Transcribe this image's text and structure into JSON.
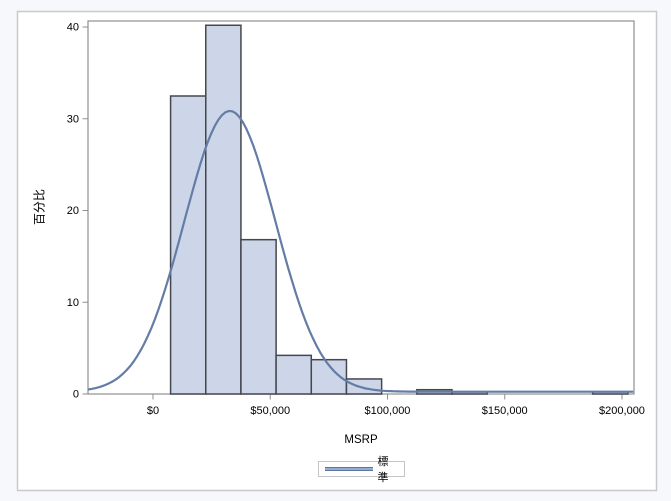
{
  "chart_data": {
    "type": "histogram",
    "title": "",
    "xlabel": "MSRP",
    "ylabel": "百分比",
    "grid": false,
    "xlim_dollars": [
      -27700,
      205100
    ],
    "ylim_percent": [
      0,
      40.7
    ],
    "bin_width_dollars": 15000,
    "x_ticks": [
      {
        "value": 0,
        "label": "$0"
      },
      {
        "value": 50000,
        "label": "$50,000"
      },
      {
        "value": 100000,
        "label": "$100,000"
      },
      {
        "value": 150000,
        "label": "$150,000"
      },
      {
        "value": 200000,
        "label": "$200,000"
      }
    ],
    "y_ticks": [
      {
        "value": 0,
        "label": "0"
      },
      {
        "value": 10,
        "label": "10"
      },
      {
        "value": 20,
        "label": "20"
      },
      {
        "value": 30,
        "label": "30"
      },
      {
        "value": 40,
        "label": "40"
      }
    ],
    "bars": [
      {
        "bin_start": 7500,
        "bin_end": 22500,
        "midpoint": 15000,
        "percent": 32.48
      },
      {
        "bin_start": 22500,
        "bin_end": 37500,
        "midpoint": 30000,
        "percent": 40.19
      },
      {
        "bin_start": 37500,
        "bin_end": 52500,
        "midpoint": 45000,
        "percent": 16.82
      },
      {
        "bin_start": 52500,
        "bin_end": 67500,
        "midpoint": 60000,
        "percent": 4.21
      },
      {
        "bin_start": 67500,
        "bin_end": 82500,
        "midpoint": 75000,
        "percent": 3.74
      },
      {
        "bin_start": 82500,
        "bin_end": 97500,
        "midpoint": 90000,
        "percent": 1.64
      },
      {
        "bin_start": 112500,
        "bin_end": 127500,
        "midpoint": 120000,
        "percent": 0.47
      },
      {
        "bin_start": 127500,
        "bin_end": 142500,
        "midpoint": 135000,
        "percent": 0.23
      },
      {
        "bin_start": 187500,
        "bin_end": 202500,
        "midpoint": 195000,
        "percent": 0.23
      }
    ],
    "curve": {
      "type": "normal",
      "label": "標準",
      "mean_dollars": 32775,
      "std_dollars": 19432,
      "peak_percent": 30.6,
      "visible_tail_percent": 0.25
    },
    "legend": {
      "label": "標準",
      "position": "bottom-center"
    }
  },
  "style": {
    "background": "#f7f8fc",
    "panel_background": "#ffffff",
    "panel_border": "#c9c9c9",
    "frame_color": "#8f8f8f",
    "tick_color": "#8f8f8f",
    "text_color": "#000000",
    "bar_fill": "#ccd6e8",
    "bar_edge": "#44474d",
    "curve_color": "#647ca6",
    "legend_border": "#c4c4c4",
    "legend_line_dark": "#5c76a2",
    "legend_line_light": "#98abd0"
  }
}
